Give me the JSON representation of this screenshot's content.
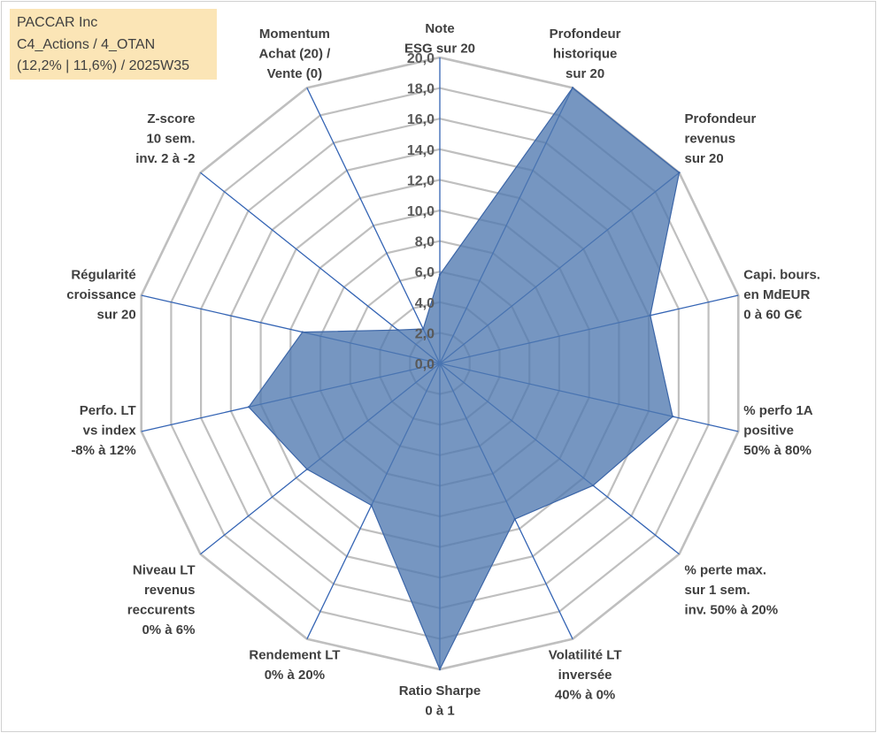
{
  "info_box": {
    "line1": "PACCAR Inc",
    "line2": "C4_Actions / 4_OTAN",
    "line3": "(12,2% | 11,6%) / 2025W35"
  },
  "chart_data": {
    "type": "radar",
    "title": "",
    "rmin": 0,
    "rmax": 20,
    "tick_step": 2,
    "tick_labels": [
      "0,0",
      "2,0",
      "4,0",
      "6,0",
      "8,0",
      "10,0",
      "12,0",
      "14,0",
      "16,0",
      "18,0",
      "20,0"
    ],
    "axes": [
      [
        "Note",
        "ESG sur 20"
      ],
      [
        "Profondeur",
        "historique",
        "sur 20"
      ],
      [
        "Profondeur",
        "revenus",
        "sur 20"
      ],
      [
        "Capi. bours.",
        "en MdEUR",
        "0 à 60 G€"
      ],
      [
        "% perfo 1A",
        "positive",
        "50% à 80%"
      ],
      [
        "% perte max.",
        "sur 1 sem.",
        "inv. 50% à 20%"
      ],
      [
        "Volatilité LT",
        "inversée",
        "40% à 0%"
      ],
      [
        "Ratio Sharpe",
        "0 à 1"
      ],
      [
        "Rendement LT",
        "0% à 20%"
      ],
      [
        "Niveau LT",
        "revenus",
        "reccurents",
        "0% à 6%"
      ],
      [
        "Perfo. LT",
        "vs index",
        "-8% à 12%"
      ],
      [
        "Régularité",
        "croissance",
        "sur 20"
      ],
      [
        "Z-score",
        "10 sem.",
        "inv. 2 à -2"
      ],
      [
        "Momentum",
        "Achat (20) /",
        "Vente (0)"
      ]
    ],
    "series": [
      {
        "values": [
          5.8,
          20.0,
          20.0,
          14.1,
          15.6,
          12.8,
          11.3,
          20.0,
          10.3,
          11.1,
          12.8,
          9.2,
          3.5,
          2.5
        ]
      }
    ],
    "colors": {
      "fill": "#4f79b0",
      "stroke": "#3c66a8",
      "spoke": "#3464b4",
      "grid": "#bfbfbf"
    },
    "grid": true,
    "legend": "none"
  }
}
